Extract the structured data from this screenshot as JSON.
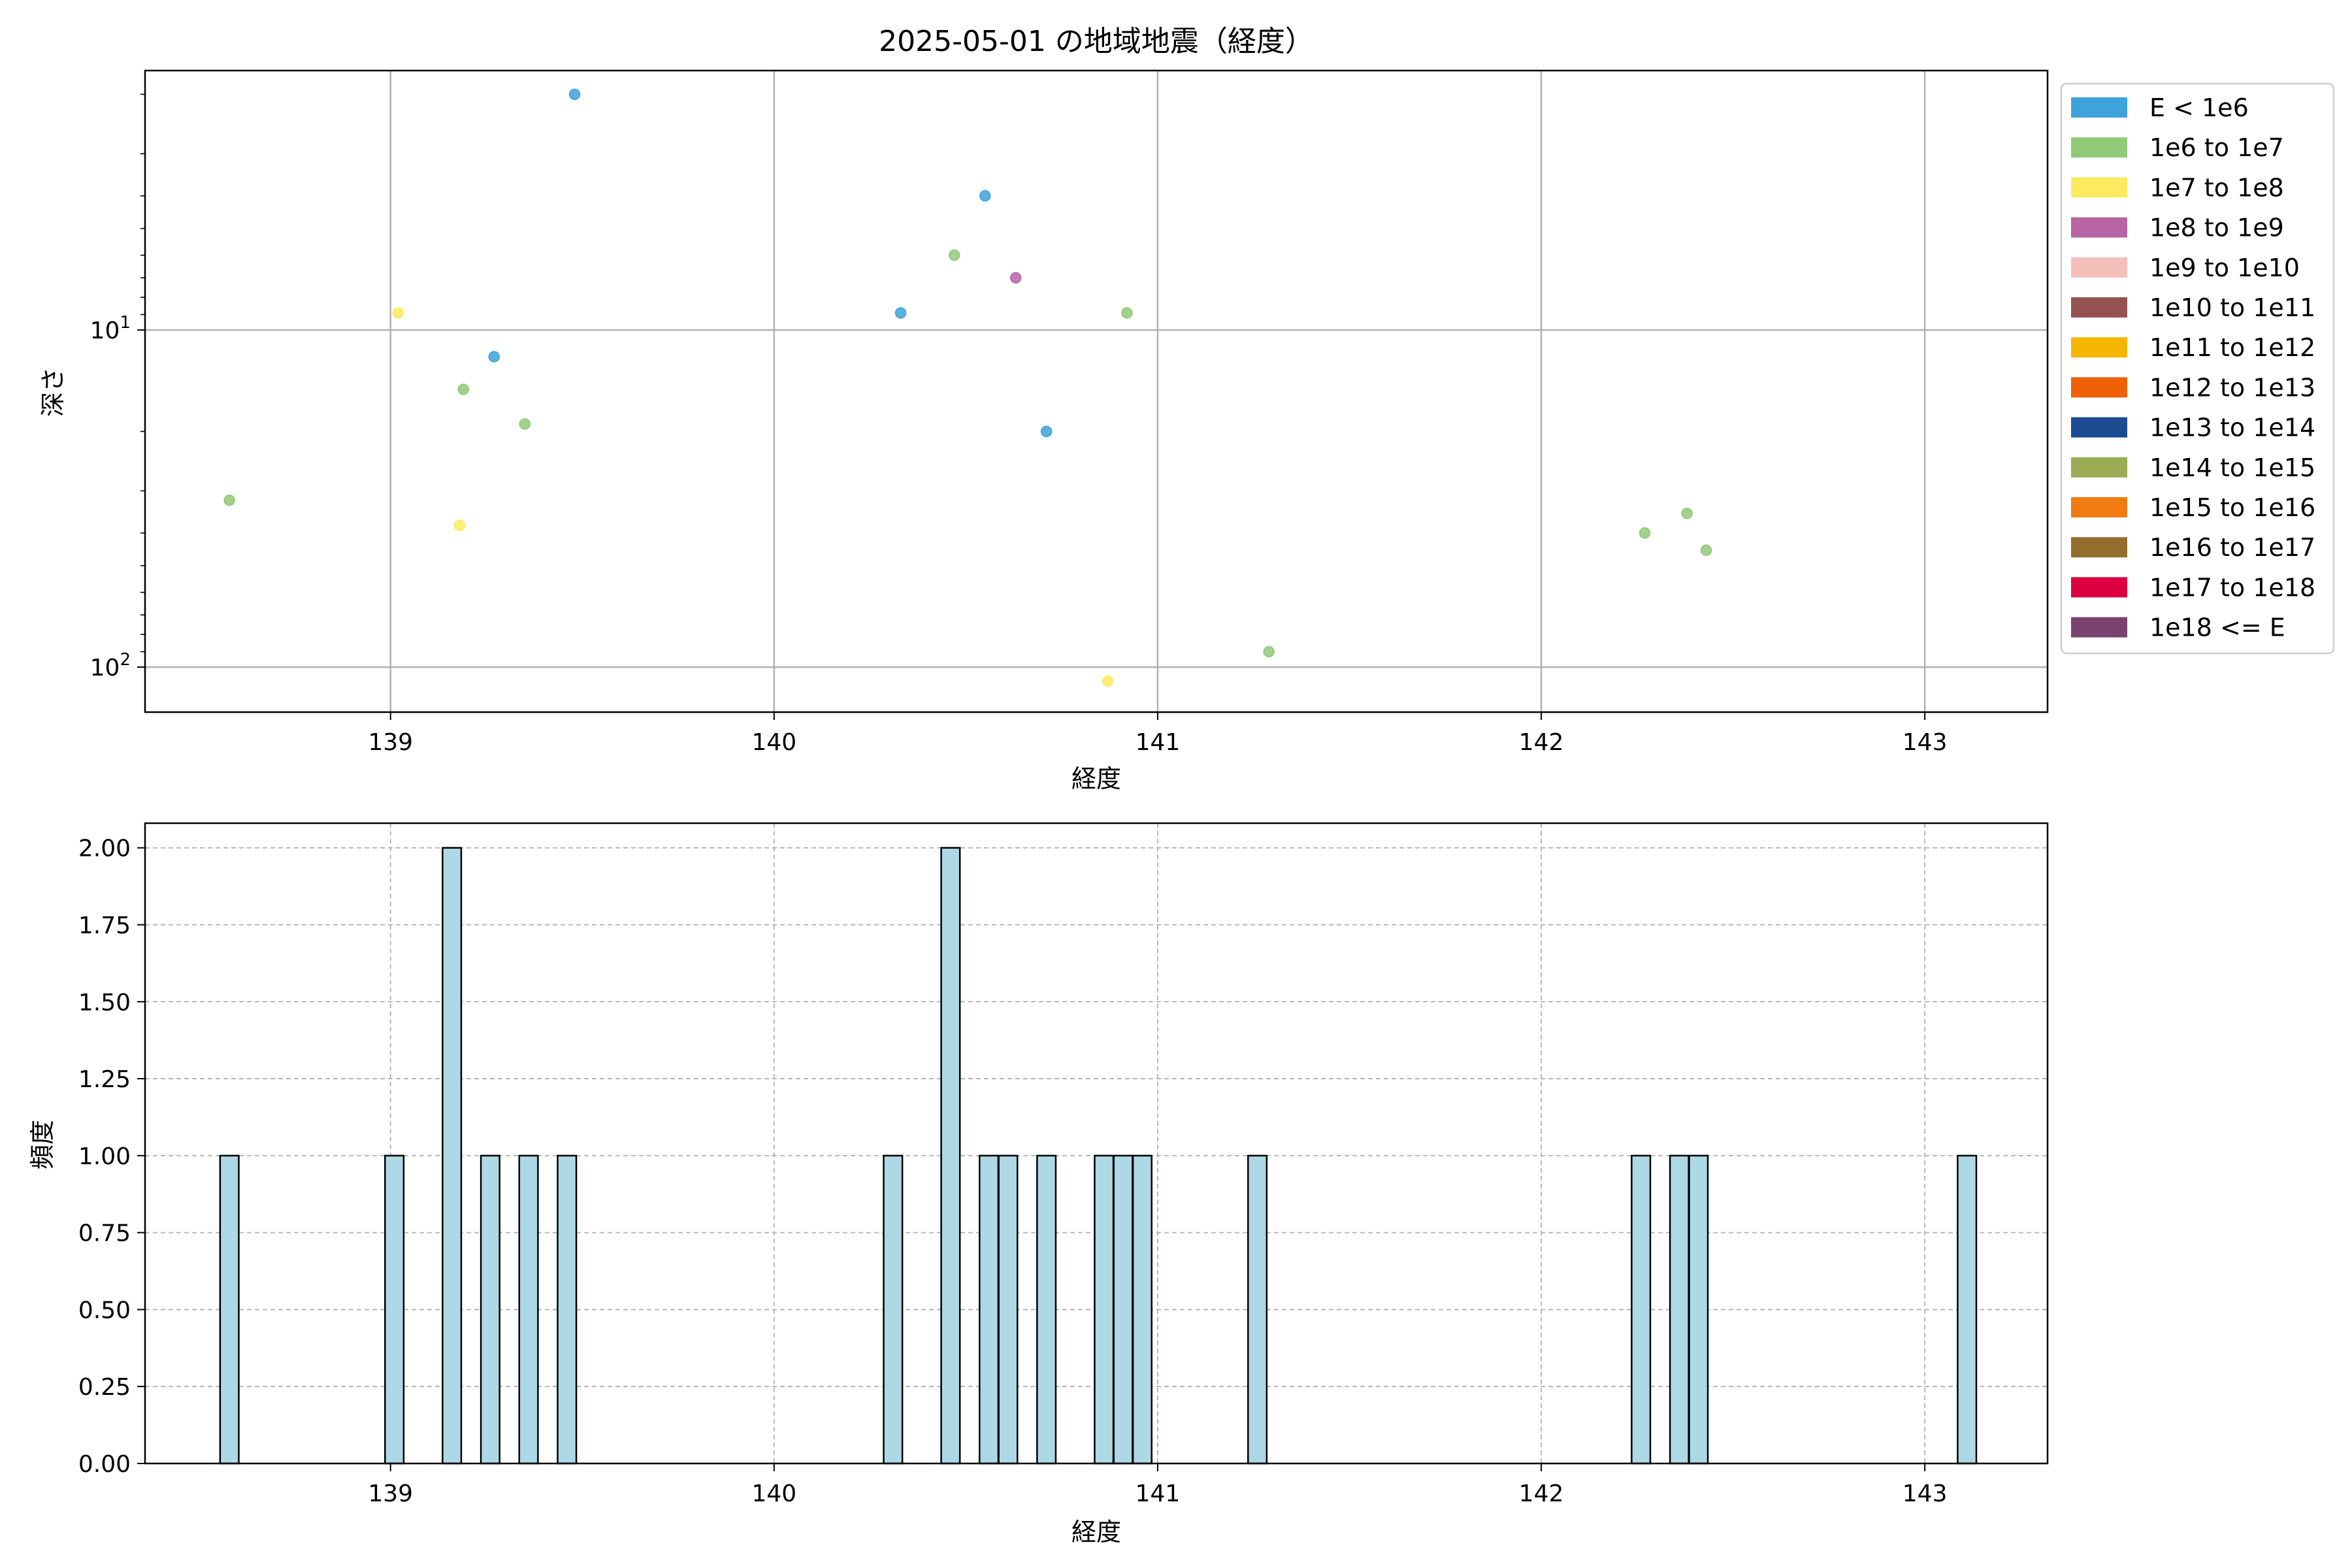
{
  "chart_data": [
    {
      "type": "scatter",
      "title": "2025-05-01 の地域地震（経度）",
      "xlabel": "経度",
      "ylabel": "深さ",
      "xlim": [
        138.36,
        143.32
      ],
      "ylim": [
        136,
        1.7
      ],
      "y_scale": "log",
      "y_inverted": true,
      "grid": true,
      "x_ticks": [
        139,
        140,
        141,
        142,
        143
      ],
      "y_ticks": [
        {
          "value": 10,
          "base": "10",
          "exp": "1"
        },
        {
          "value": 100,
          "base": "10",
          "exp": "2"
        }
      ],
      "legend_position": "outside-right",
      "legend": [
        {
          "label": "E < 1e6",
          "color": "#3ea2db"
        },
        {
          "label": "1e6 to 1e7",
          "color": "#90c978"
        },
        {
          "label": "1e7 to 1e8",
          "color": "#fdeb5f"
        },
        {
          "label": "1e8 to 1e9",
          "color": "#b863a4"
        },
        {
          "label": "1e9 to 1e10",
          "color": "#f5c0ba"
        },
        {
          "label": "1e10 to 1e11",
          "color": "#955251"
        },
        {
          "label": "1e11 to 1e12",
          "color": "#f6b600"
        },
        {
          "label": "1e12 to 1e13",
          "color": "#ee6106"
        },
        {
          "label": "1e13 to 1e14",
          "color": "#1b4b91"
        },
        {
          "label": "1e14 to 1e15",
          "color": "#9cac54"
        },
        {
          "label": "1e15 to 1e16",
          "color": "#ef7b11"
        },
        {
          "label": "1e16 to 1e17",
          "color": "#946e2d"
        },
        {
          "label": "1e17 to 1e18",
          "color": "#dc0040"
        },
        {
          "label": "1e18 <= E",
          "color": "#7a436e"
        }
      ],
      "points": [
        {
          "x": 138.58,
          "y": 32,
          "color": "#90c978"
        },
        {
          "x": 139.02,
          "y": 8.9,
          "color": "#fdeb5f"
        },
        {
          "x": 139.18,
          "y": 38,
          "color": "#fdeb5f"
        },
        {
          "x": 139.19,
          "y": 15,
          "color": "#90c978"
        },
        {
          "x": 139.27,
          "y": 12,
          "color": "#3ea2db"
        },
        {
          "x": 139.35,
          "y": 19,
          "color": "#90c978"
        },
        {
          "x": 139.48,
          "y": 2.0,
          "color": "#3ea2db"
        },
        {
          "x": 140.33,
          "y": 8.9,
          "color": "#3ea2db"
        },
        {
          "x": 140.47,
          "y": 6.0,
          "color": "#90c978"
        },
        {
          "x": 140.55,
          "y": 4.0,
          "color": "#3ea2db"
        },
        {
          "x": 140.63,
          "y": 7.0,
          "color": "#b863a4"
        },
        {
          "x": 140.71,
          "y": 20,
          "color": "#3ea2db"
        },
        {
          "x": 140.87,
          "y": 110,
          "color": "#fdeb5f"
        },
        {
          "x": 140.92,
          "y": 8.9,
          "color": "#90c978"
        },
        {
          "x": 141.29,
          "y": 90,
          "color": "#90c978"
        },
        {
          "x": 142.27,
          "y": 40,
          "color": "#90c978"
        },
        {
          "x": 142.38,
          "y": 35,
          "color": "#90c978"
        },
        {
          "x": 142.43,
          "y": 45,
          "color": "#90c978"
        }
      ]
    },
    {
      "type": "bar",
      "title": "",
      "xlabel": "経度",
      "ylabel": "頻度",
      "xlim": [
        138.36,
        143.32
      ],
      "ylim": [
        0,
        2.08
      ],
      "grid": true,
      "grid_style": "dashed",
      "bar_color": "#add8e6",
      "bar_edge_color": "#000000",
      "bin_width": 0.0487,
      "x_ticks": [
        139,
        140,
        141,
        142,
        143
      ],
      "y_ticks": [
        0.0,
        0.25,
        0.5,
        0.75,
        1.0,
        1.25,
        1.5,
        1.75,
        2.0
      ],
      "bars": [
        {
          "x": 138.58,
          "value": 1
        },
        {
          "x": 139.01,
          "value": 1
        },
        {
          "x": 139.16,
          "value": 2
        },
        {
          "x": 139.26,
          "value": 1
        },
        {
          "x": 139.36,
          "value": 1
        },
        {
          "x": 139.46,
          "value": 1
        },
        {
          "x": 140.31,
          "value": 1
        },
        {
          "x": 140.46,
          "value": 2
        },
        {
          "x": 140.56,
          "value": 1
        },
        {
          "x": 140.61,
          "value": 1
        },
        {
          "x": 140.71,
          "value": 1
        },
        {
          "x": 140.86,
          "value": 1
        },
        {
          "x": 140.91,
          "value": 1
        },
        {
          "x": 140.96,
          "value": 1
        },
        {
          "x": 141.26,
          "value": 1
        },
        {
          "x": 142.26,
          "value": 1
        },
        {
          "x": 142.36,
          "value": 1
        },
        {
          "x": 142.41,
          "value": 1
        },
        {
          "x": 143.11,
          "value": 1
        }
      ]
    }
  ]
}
